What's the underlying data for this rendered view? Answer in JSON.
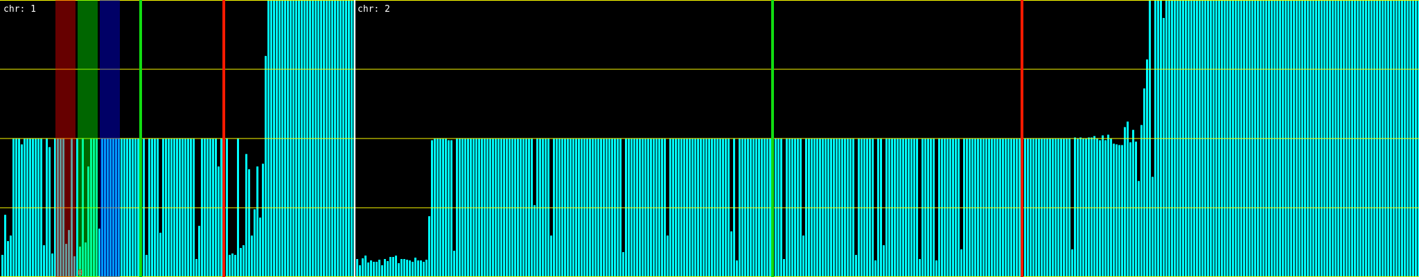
{
  "colors": {
    "background": "#000000",
    "bar": "#00ffff",
    "gridline": "#ffff00",
    "separator": "#ffffff",
    "marker_green": "#11dd11",
    "marker_red": "#ff1a00",
    "region_red": "rgba(255,0,0,0.4)",
    "region_green": "rgba(0,255,0,0.4)",
    "region_blue": "rgba(0,0,255,0.4)"
  },
  "marker_text": "0",
  "chart_data": [
    {
      "type": "bar",
      "title": "chr: 1",
      "ylim": [
        0,
        2
      ],
      "gridlines": [
        0,
        0.5,
        1,
        1.5,
        2
      ],
      "grid": true,
      "values": [
        0.16,
        0.45,
        0.26,
        0.3,
        1,
        1,
        1,
        0.96,
        1,
        1,
        1,
        1,
        1,
        1,
        1,
        0.23,
        1,
        0.94,
        0.17,
        1,
        1,
        1,
        1,
        0.24,
        0.34,
        1,
        0.15,
        1,
        0.22,
        1,
        0.25,
        0.8,
        1,
        1,
        1,
        0.35,
        1,
        1,
        1,
        1,
        1,
        1,
        1,
        1,
        1,
        1,
        1,
        1,
        1,
        1,
        1,
        1,
        0.16,
        1,
        1,
        1,
        1,
        0.32,
        1,
        1,
        1,
        1,
        1,
        1,
        1,
        1,
        1,
        1,
        1,
        1,
        0.13,
        0.37,
        1,
        1,
        1,
        1,
        1,
        1,
        0.8,
        1,
        1,
        1,
        0.16,
        0.17,
        0.16,
        1,
        0.21,
        0.23,
        0.89,
        0.78,
        0.3,
        0.49,
        0.8,
        0.43,
        0.82,
        1.6,
        2,
        2,
        2,
        2,
        2,
        2,
        2,
        2,
        2,
        2,
        2,
        2,
        2,
        2,
        2,
        2,
        2,
        2,
        2,
        2,
        2,
        2,
        2,
        2,
        2,
        2,
        2,
        2,
        2,
        2,
        2,
        2
      ]
    },
    {
      "type": "bar",
      "title": "chr: 2",
      "ylim": [
        0,
        2
      ],
      "gridlines": [
        0,
        0.5,
        1,
        1.5,
        2
      ],
      "grid": true,
      "values": [
        0.13,
        0.085,
        0.135,
        0.155,
        0.105,
        0.12,
        0.11,
        0.11,
        0.125,
        0.085,
        0.13,
        0.115,
        0.145,
        0.145,
        0.155,
        0.1,
        0.13,
        0.13,
        0.125,
        0.12,
        0.11,
        0.14,
        0.12,
        0.12,
        0.11,
        0.125,
        0.44,
        0.99,
        1,
        1,
        1,
        1,
        1,
        0.99,
        0.99,
        0.19,
        1,
        1,
        1,
        1,
        1,
        1,
        1,
        1,
        1,
        1,
        1,
        1,
        1,
        1,
        1,
        1,
        1,
        1,
        1,
        1,
        1,
        1,
        1,
        1,
        1,
        1,
        1,
        1,
        0.52,
        1,
        1,
        1,
        1,
        1,
        0.3,
        1,
        1,
        1,
        1,
        1,
        1,
        1,
        1,
        1,
        1,
        1,
        1,
        1,
        1,
        1,
        1,
        1,
        1,
        1,
        1,
        1,
        1,
        1,
        1,
        1,
        0.18,
        1,
        1,
        1,
        1,
        1,
        1,
        1,
        1,
        1,
        1,
        1,
        1,
        1,
        1,
        1,
        0.3,
        1,
        1,
        1,
        1,
        1,
        1,
        1,
        1,
        1,
        1,
        1,
        1,
        1,
        1,
        1,
        1,
        1,
        1,
        1,
        1,
        1,
        1,
        0.33,
        1,
        0.12,
        1,
        1,
        1,
        1,
        1,
        1,
        1,
        1,
        1,
        1,
        1,
        1,
        1,
        1,
        1,
        1,
        0.13,
        1,
        1,
        1,
        1,
        1,
        1,
        0.3,
        1,
        1,
        1,
        1,
        1,
        1,
        1,
        1,
        1,
        1,
        1,
        1,
        1,
        1,
        1,
        1,
        1,
        1,
        0.16,
        1,
        1,
        1,
        1,
        1,
        1,
        0.12,
        1,
        1,
        0.23,
        1,
        1,
        1,
        1,
        1,
        1,
        1,
        1,
        1,
        1,
        1,
        1,
        0.13,
        1,
        1,
        1,
        1,
        1,
        0.12,
        1,
        1,
        1,
        1,
        1,
        1,
        1,
        1,
        0.2,
        1,
        1,
        1,
        1,
        1,
        1,
        1,
        1,
        1,
        1,
        1,
        1,
        1,
        1,
        1,
        1,
        1,
        1,
        1,
        1,
        1,
        1,
        1.005,
        1.005,
        1,
        1,
        1,
        1,
        1.005,
        1.005,
        1.005,
        1.005,
        1,
        1,
        1,
        1.005,
        1,
        1,
        1.005,
        0.2,
        1.01,
        1,
        1.01,
        1,
        1,
        1.01,
        1.01,
        1.02,
        1,
        0.99,
        1.025,
        0.99,
        1.03,
        1,
        0.965,
        0.96,
        0.955,
        0.955,
        1.085,
        1.125,
        0.975,
        1.065,
        0.98,
        0.695,
        1.1,
        1.365,
        1.575,
        2,
        0.725,
        2,
        2,
        2,
        1.875,
        2,
        2,
        2,
        2,
        2,
        2,
        2,
        2,
        2,
        2,
        2,
        2,
        2,
        2,
        2,
        2,
        2,
        2,
        2,
        2,
        2,
        2,
        2,
        2,
        2,
        2,
        2,
        2,
        2,
        2,
        2,
        2,
        2,
        2,
        2,
        2,
        2,
        2,
        2,
        2,
        2,
        2,
        2,
        2,
        2,
        2,
        2,
        2,
        2,
        2,
        2,
        2,
        2,
        2,
        2,
        2,
        2,
        2,
        2,
        2,
        2,
        2,
        2,
        2,
        2,
        2,
        2,
        2,
        2,
        2,
        2,
        2,
        2,
        2,
        2,
        2,
        2,
        2,
        2,
        2,
        2,
        2,
        2,
        2,
        2,
        2,
        2,
        2,
        2,
        2,
        2,
        2
      ]
    }
  ]
}
